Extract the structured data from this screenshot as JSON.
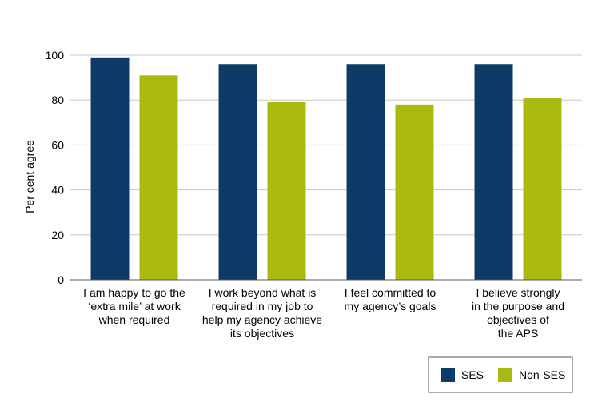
{
  "chart_data": {
    "type": "bar",
    "ylabel": "Per cent agree",
    "ylim": [
      0,
      100
    ],
    "yticks": [
      0,
      20,
      40,
      60,
      80,
      100
    ],
    "grid": true,
    "legend_position": "bottom-right",
    "categories": [
      [
        "I am happy to go the",
        "‘extra mile’ at work",
        "when required"
      ],
      [
        "I work beyond what is",
        "required in my job to",
        "help my agency achieve",
        "its objectives"
      ],
      [
        "I feel committed to",
        "my agency’s goals"
      ],
      [
        "I believe strongly",
        "in the purpose and",
        "objectives of",
        "the APS"
      ]
    ],
    "series": [
      {
        "name": "SES",
        "color": "#0d3a66",
        "values": [
          99,
          96,
          96,
          96
        ]
      },
      {
        "name": "Non-SES",
        "color": "#aab90f",
        "values": [
          91,
          79,
          78,
          81
        ]
      }
    ]
  }
}
